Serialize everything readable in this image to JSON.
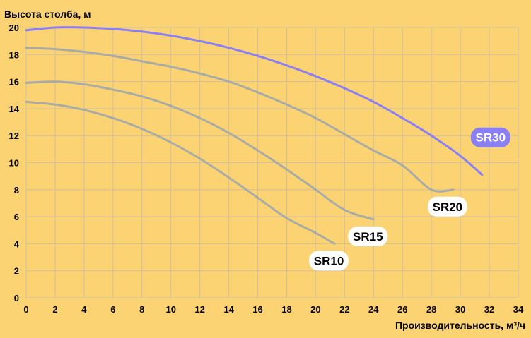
{
  "chart_data": {
    "type": "line",
    "ylabel": "Высота столба, м",
    "xlabel": "Производительность, м³/ч",
    "xlim": [
      0,
      34
    ],
    "ylim": [
      0,
      20
    ],
    "xticks": [
      0,
      2,
      4,
      6,
      8,
      10,
      12,
      14,
      16,
      18,
      20,
      22,
      24,
      26,
      28,
      30,
      32,
      34
    ],
    "yticks": [
      0,
      2,
      4,
      6,
      8,
      10,
      12,
      14,
      16,
      18,
      20
    ],
    "grid": true,
    "background_color": "#FBD373",
    "series": [
      {
        "name": "SR10",
        "color": "#A9ABA6",
        "x": [
          0,
          2,
          4,
          6,
          8,
          10,
          12,
          14,
          16,
          18,
          20,
          21.3
        ],
        "y": [
          14.5,
          14.3,
          13.9,
          13.3,
          12.5,
          11.5,
          10.3,
          8.9,
          7.4,
          5.9,
          4.8,
          4.0
        ]
      },
      {
        "name": "SR15",
        "color": "#A9ABA6",
        "x": [
          0,
          2,
          4,
          6,
          8,
          10,
          12,
          14,
          16,
          18,
          20,
          22,
          24
        ],
        "y": [
          15.9,
          16.0,
          15.8,
          15.4,
          14.9,
          14.2,
          13.3,
          12.2,
          10.9,
          9.5,
          8.0,
          6.5,
          5.8
        ]
      },
      {
        "name": "SR20",
        "color": "#A9ABA6",
        "x": [
          0,
          2,
          4,
          6,
          8,
          10,
          12,
          14,
          16,
          18,
          20,
          22,
          24,
          26,
          28,
          29.5
        ],
        "y": [
          18.5,
          18.4,
          18.2,
          17.9,
          17.5,
          17.1,
          16.6,
          16.0,
          15.2,
          14.3,
          13.3,
          12.1,
          10.9,
          9.8,
          8.0,
          8.0
        ]
      },
      {
        "name": "SR30",
        "color": "#8A7FF4",
        "x": [
          0,
          2,
          4,
          6,
          8,
          10,
          12,
          14,
          16,
          18,
          20,
          22,
          24,
          26,
          28,
          30,
          31.5
        ],
        "y": [
          19.8,
          20.0,
          20.0,
          19.9,
          19.7,
          19.4,
          19.0,
          18.5,
          17.9,
          17.2,
          16.4,
          15.5,
          14.5,
          13.3,
          12.0,
          10.5,
          9.1
        ]
      }
    ],
    "label_style": {
      "SR10": {
        "fill": "#FFFFFF",
        "text": "#000000"
      },
      "SR15": {
        "fill": "#FFFFFF",
        "text": "#000000"
      },
      "SR20": {
        "fill": "#FFFFFF",
        "text": "#000000"
      },
      "SR30": {
        "fill": "#8A7FF4",
        "text": "#FFFFFF"
      }
    }
  }
}
